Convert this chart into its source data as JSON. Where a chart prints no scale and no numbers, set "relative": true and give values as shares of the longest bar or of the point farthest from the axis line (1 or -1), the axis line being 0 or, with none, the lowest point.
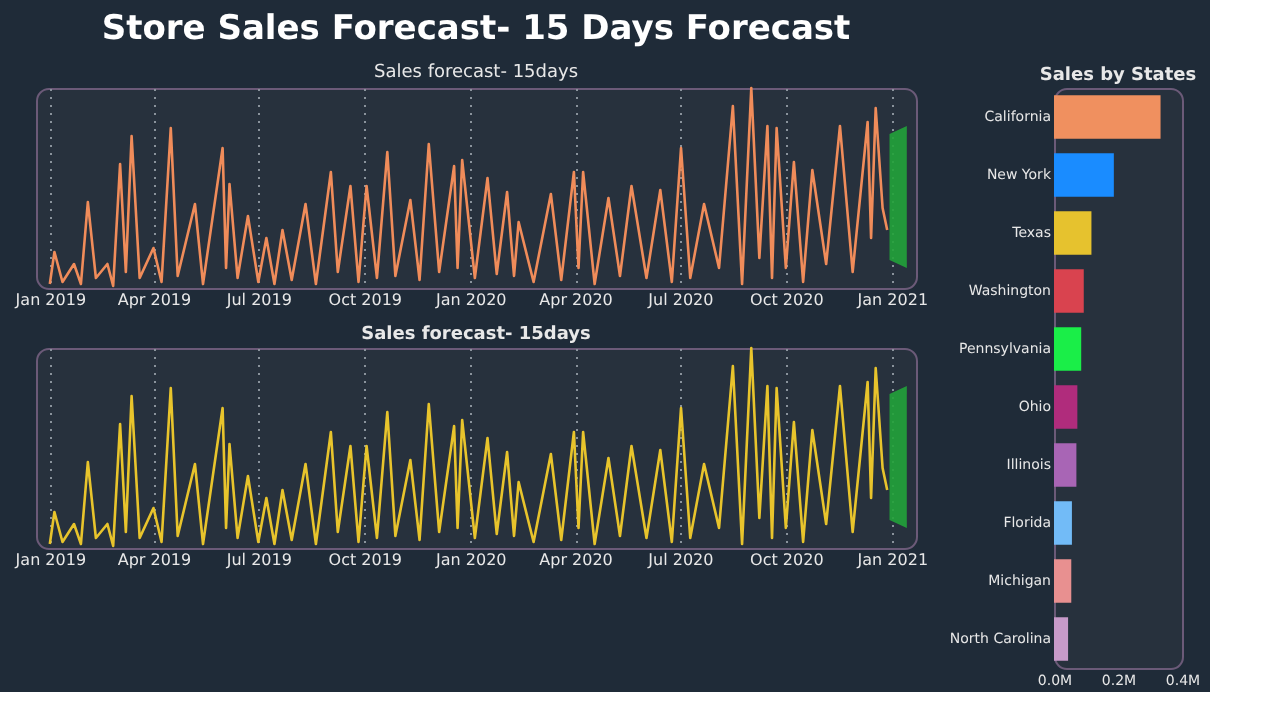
{
  "chart_data": [
    {
      "type": "line",
      "title": "Store Sales Forecast- 15 Days Forecast",
      "subtitle": "Sales forecast- 15days",
      "relative": true,
      "grid": "x",
      "x": [
        "2019-01-01",
        "2019-01-05",
        "2019-01-12",
        "2019-01-22",
        "2019-01-28",
        "2019-02-03",
        "2019-02-10",
        "2019-02-20",
        "2019-02-25",
        "2019-03-03",
        "2019-03-08",
        "2019-03-13",
        "2019-03-20",
        "2019-04-01",
        "2019-04-08",
        "2019-04-16",
        "2019-04-22",
        "2019-05-07",
        "2019-05-14",
        "2019-05-31",
        "2019-06-03",
        "2019-06-06",
        "2019-06-13",
        "2019-06-22",
        "2019-07-01",
        "2019-07-08",
        "2019-07-15",
        "2019-07-22",
        "2019-07-30",
        "2019-08-11",
        "2019-08-20",
        "2019-09-02",
        "2019-09-08",
        "2019-09-19",
        "2019-09-26",
        "2019-10-03",
        "2019-10-12",
        "2019-10-21",
        "2019-10-28",
        "2019-11-10",
        "2019-11-18",
        "2019-11-26",
        "2019-12-05",
        "2019-12-18",
        "2019-12-21",
        "2019-12-25",
        "2020-01-05",
        "2020-01-16",
        "2020-01-24",
        "2020-02-02",
        "2020-02-08",
        "2020-02-12",
        "2020-02-25",
        "2020-03-11",
        "2020-03-20",
        "2020-03-31",
        "2020-04-04",
        "2020-04-08",
        "2020-04-18",
        "2020-04-30",
        "2020-05-10",
        "2020-05-20",
        "2020-06-02",
        "2020-06-14",
        "2020-06-24",
        "2020-07-02",
        "2020-07-10",
        "2020-07-22",
        "2020-08-04",
        "2020-08-16",
        "2020-08-24",
        "2020-09-01",
        "2020-09-08",
        "2020-09-15",
        "2020-09-19",
        "2020-09-23",
        "2020-10-01",
        "2020-10-08",
        "2020-10-16",
        "2020-10-24",
        "2020-11-05",
        "2020-11-17",
        "2020-11-28",
        "2020-12-11",
        "2020-12-14",
        "2020-12-18",
        "2020-12-24",
        "2020-12-28"
      ],
      "series": [
        {
          "color": "#f08c5a",
          "values": [
            0.02,
            0.18,
            0.03,
            0.12,
            0.02,
            0.43,
            0.05,
            0.12,
            0.01,
            0.62,
            0.08,
            0.76,
            0.05,
            0.2,
            0.03,
            0.8,
            0.06,
            0.42,
            0.02,
            0.7,
            0.1,
            0.52,
            0.05,
            0.36,
            0.03,
            0.25,
            0.02,
            0.29,
            0.04,
            0.42,
            0.02,
            0.58,
            0.08,
            0.51,
            0.03,
            0.51,
            0.05,
            0.68,
            0.06,
            0.44,
            0.04,
            0.72,
            0.08,
            0.61,
            0.1,
            0.64,
            0.05,
            0.55,
            0.07,
            0.48,
            0.06,
            0.33,
            0.03,
            0.47,
            0.04,
            0.58,
            0.1,
            0.58,
            0.02,
            0.45,
            0.06,
            0.51,
            0.05,
            0.49,
            0.03,
            0.7,
            0.05,
            0.42,
            0.1,
            0.91,
            0.02,
            1.0,
            0.15,
            0.81,
            0.05,
            0.8,
            0.1,
            0.63,
            0.03,
            0.59,
            0.12,
            0.81,
            0.08,
            0.83,
            0.25,
            0.9,
            0.4,
            0.29
          ]
        },
        {
          "color": "#22a33a",
          "x": [
            "2020-12-30",
            "2021-01-14"
          ],
          "values": [
            null,
            null
          ],
          "lower": [
            0.14,
            0.1
          ],
          "upper": [
            0.77,
            0.81
          ]
        }
      ],
      "xlim": [
        "2018-12-20",
        "2021-01-22"
      ],
      "xticks": [
        {
          "value": "2019-01-01",
          "label": "Jan 2019"
        },
        {
          "value": "2019-04-01",
          "label": "Apr 2019"
        },
        {
          "value": "2019-07-01",
          "label": "Jul 2019"
        },
        {
          "value": "2019-10-01",
          "label": "Oct 2019"
        },
        {
          "value": "2020-01-01",
          "label": "Jan 2020"
        },
        {
          "value": "2020-04-01",
          "label": "Apr 2020"
        },
        {
          "value": "2020-07-01",
          "label": "Jul 2020"
        },
        {
          "value": "2020-10-01",
          "label": "Oct 2020"
        },
        {
          "value": "2021-01-01",
          "label": "Jan 2021"
        }
      ]
    },
    {
      "type": "line",
      "title": "Sales forecast- 15days",
      "relative": true,
      "grid": "x",
      "x": [
        "2019-01-01",
        "2019-01-05",
        "2019-01-12",
        "2019-01-22",
        "2019-01-28",
        "2019-02-03",
        "2019-02-10",
        "2019-02-20",
        "2019-02-25",
        "2019-03-03",
        "2019-03-08",
        "2019-03-13",
        "2019-03-20",
        "2019-04-01",
        "2019-04-08",
        "2019-04-16",
        "2019-04-22",
        "2019-05-07",
        "2019-05-14",
        "2019-05-31",
        "2019-06-03",
        "2019-06-06",
        "2019-06-13",
        "2019-06-22",
        "2019-07-01",
        "2019-07-08",
        "2019-07-15",
        "2019-07-22",
        "2019-07-30",
        "2019-08-11",
        "2019-08-20",
        "2019-09-02",
        "2019-09-08",
        "2019-09-19",
        "2019-09-26",
        "2019-10-03",
        "2019-10-12",
        "2019-10-21",
        "2019-10-28",
        "2019-11-10",
        "2019-11-18",
        "2019-11-26",
        "2019-12-05",
        "2019-12-18",
        "2019-12-21",
        "2019-12-25",
        "2020-01-05",
        "2020-01-16",
        "2020-01-24",
        "2020-02-02",
        "2020-02-08",
        "2020-02-12",
        "2020-02-25",
        "2020-03-11",
        "2020-03-20",
        "2020-03-31",
        "2020-04-04",
        "2020-04-08",
        "2020-04-18",
        "2020-04-30",
        "2020-05-10",
        "2020-05-20",
        "2020-06-02",
        "2020-06-14",
        "2020-06-24",
        "2020-07-02",
        "2020-07-10",
        "2020-07-22",
        "2020-08-04",
        "2020-08-16",
        "2020-08-24",
        "2020-09-01",
        "2020-09-08",
        "2020-09-15",
        "2020-09-19",
        "2020-09-23",
        "2020-10-01",
        "2020-10-08",
        "2020-10-16",
        "2020-10-24",
        "2020-11-05",
        "2020-11-17",
        "2020-11-28",
        "2020-12-11",
        "2020-12-14",
        "2020-12-18",
        "2020-12-24",
        "2020-12-28"
      ],
      "series": [
        {
          "color": "#e8c42c",
          "values": [
            0.02,
            0.18,
            0.03,
            0.12,
            0.02,
            0.43,
            0.05,
            0.12,
            0.01,
            0.62,
            0.08,
            0.76,
            0.05,
            0.2,
            0.03,
            0.8,
            0.06,
            0.42,
            0.02,
            0.7,
            0.1,
            0.52,
            0.05,
            0.36,
            0.03,
            0.25,
            0.02,
            0.29,
            0.04,
            0.42,
            0.02,
            0.58,
            0.08,
            0.51,
            0.03,
            0.51,
            0.05,
            0.68,
            0.06,
            0.44,
            0.04,
            0.72,
            0.08,
            0.61,
            0.1,
            0.64,
            0.05,
            0.55,
            0.07,
            0.48,
            0.06,
            0.33,
            0.03,
            0.47,
            0.04,
            0.58,
            0.1,
            0.58,
            0.02,
            0.45,
            0.06,
            0.51,
            0.05,
            0.49,
            0.03,
            0.7,
            0.05,
            0.42,
            0.1,
            0.91,
            0.02,
            1.0,
            0.15,
            0.81,
            0.05,
            0.8,
            0.1,
            0.63,
            0.03,
            0.59,
            0.12,
            0.81,
            0.08,
            0.83,
            0.25,
            0.9,
            0.4,
            0.29
          ]
        },
        {
          "color": "#22a33a",
          "x": [
            "2020-12-30",
            "2021-01-14"
          ],
          "values": [
            null,
            null
          ],
          "lower": [
            0.14,
            0.1
          ],
          "upper": [
            0.77,
            0.81
          ]
        }
      ],
      "xlim": [
        "2018-12-20",
        "2021-01-22"
      ],
      "xticks": [
        {
          "value": "2019-01-01",
          "label": "Jan 2019"
        },
        {
          "value": "2019-04-01",
          "label": "Apr 2019"
        },
        {
          "value": "2019-07-01",
          "label": "Jul 2019"
        },
        {
          "value": "2019-10-01",
          "label": "Oct 2019"
        },
        {
          "value": "2020-01-01",
          "label": "Jan 2020"
        },
        {
          "value": "2020-04-01",
          "label": "Apr 2020"
        },
        {
          "value": "2020-07-01",
          "label": "Jul 2020"
        },
        {
          "value": "2020-10-01",
          "label": "Oct 2020"
        },
        {
          "value": "2021-01-01",
          "label": "Jan 2021"
        }
      ]
    },
    {
      "type": "bar",
      "orientation": "horizontal",
      "title": "Sales by States",
      "grid": false,
      "categories": [
        "California",
        "New York",
        "Texas",
        "Washington",
        "Pennsylvania",
        "Ohio",
        "Illinois",
        "Florida",
        "Michigan",
        "North Carolina"
      ],
      "values": [
        0.333,
        0.187,
        0.117,
        0.093,
        0.085,
        0.073,
        0.07,
        0.056,
        0.054,
        0.044
      ],
      "colors": [
        "#f0905f",
        "#1a8cff",
        "#e6c22e",
        "#d9434f",
        "#1aee48",
        "#b02c7c",
        "#a865b5",
        "#72bbf7",
        "#e89090",
        "#c79ac9"
      ],
      "xlim": [
        0,
        0.4
      ],
      "xticks": [
        {
          "value": 0,
          "label": "0.0M"
        },
        {
          "value": 0.2,
          "label": "0.2M"
        },
        {
          "value": 0.4,
          "label": "0.4M"
        }
      ]
    }
  ]
}
